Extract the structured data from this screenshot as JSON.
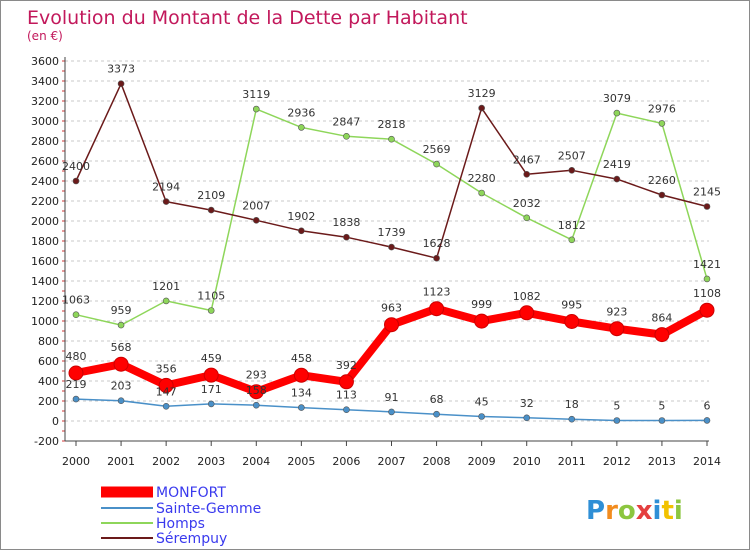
{
  "chart_data": {
    "type": "line",
    "title": "Evolution du Montant de la Dette par Habitant",
    "subtitle": "(en €)",
    "x": [
      "2000",
      "2001",
      "2002",
      "2003",
      "2004",
      "2005",
      "2006",
      "2007",
      "2008",
      "2009",
      "2010",
      "2011",
      "2012",
      "2013",
      "2014"
    ],
    "ylim": [
      -200,
      3600
    ],
    "yticks": [
      -200,
      0,
      200,
      400,
      600,
      800,
      1000,
      1200,
      1400,
      1600,
      1800,
      2000,
      2200,
      2400,
      2600,
      2800,
      3000,
      3200,
      3400,
      3600
    ],
    "grid": "horizontal dashed",
    "legend_position": "bottom-left",
    "series": [
      {
        "name": "MONFORT",
        "color": "#ff0000",
        "width": 8,
        "marker": 7,
        "values": [
          480,
          568,
          356,
          459,
          293,
          458,
          392,
          963,
          1123,
          999,
          1082,
          995,
          923,
          864,
          1108
        ],
        "labels": [
          "480",
          "568",
          "356",
          "459",
          "293",
          "458",
          "392",
          "963",
          "1123",
          "999",
          "1082",
          "995",
          "923",
          "864",
          "1108"
        ]
      },
      {
        "name": "Sainte-Gemme",
        "color": "#4a90c8",
        "width": 1.5,
        "marker": 3,
        "values": [
          219,
          203,
          147,
          171,
          158,
          134,
          113,
          91,
          68,
          45,
          32,
          18,
          5,
          5,
          6
        ],
        "labels": [
          "219",
          "203",
          "147",
          "171",
          "158",
          "134",
          "113",
          "91",
          "68",
          "45",
          "32",
          "18",
          "5",
          "5",
          "6"
        ]
      },
      {
        "name": "Homps",
        "color": "#8ed65a",
        "width": 1.5,
        "marker": 3,
        "values": [
          1063,
          959,
          1201,
          1105,
          3119,
          2936,
          2847,
          2818,
          2569,
          2280,
          2032,
          1812,
          3079,
          2976,
          1421
        ],
        "labels": [
          "1063",
          "959",
          "1201",
          "1105",
          "3119",
          "2936",
          "2847",
          "2818",
          "2569",
          "2280",
          "2032",
          "1812",
          "3079",
          "2976",
          "1421"
        ]
      },
      {
        "name": "Sérempuy",
        "color": "#6b1a1a",
        "width": 1.5,
        "marker": 3,
        "values": [
          2400,
          3373,
          2194,
          2109,
          2007,
          1902,
          1838,
          1739,
          1628,
          3129,
          2467,
          2507,
          2419,
          2260,
          2145
        ],
        "labels": [
          "2400",
          "3373",
          "2194",
          "2109",
          "2007",
          "1902",
          "1838",
          "1739",
          "1628",
          "3129",
          "2467",
          "2507",
          "2419",
          "2260",
          "2145"
        ]
      }
    ]
  },
  "logo": {
    "text": "Proxiti"
  }
}
